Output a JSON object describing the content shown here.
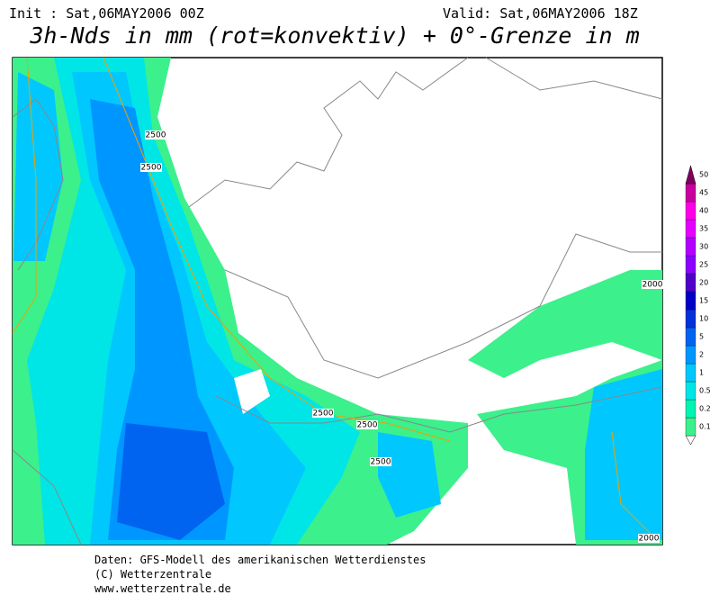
{
  "header": {
    "init": "Init : Sat,06MAY2006 00Z",
    "valid": "Valid: Sat,06MAY2006 18Z",
    "title": "3h-Nds in mm (rot=konvektiv) + 0°-Grenze in m"
  },
  "legend": [
    {
      "label": 0.1,
      "color": "#3cf08c"
    },
    {
      "label": 0.2,
      "color": "#00f5b4"
    },
    {
      "label": 0.5,
      "color": "#00e6e6"
    },
    {
      "label": 1,
      "color": "#00c8ff"
    },
    {
      "label": 2,
      "color": "#0096ff"
    },
    {
      "label": 5,
      "color": "#0064f0"
    },
    {
      "label": 10,
      "color": "#0032dc"
    },
    {
      "label": 15,
      "color": "#0000c8"
    },
    {
      "label": 20,
      "color": "#5000c8"
    },
    {
      "label": 25,
      "color": "#8c00ff"
    },
    {
      "label": 30,
      "color": "#b400ff"
    },
    {
      "label": 35,
      "color": "#e600ff"
    },
    {
      "label": 40,
      "color": "#ff00e6"
    },
    {
      "label": 45,
      "color": "#c800a0"
    },
    {
      "label": 50,
      "color": "#800060"
    }
  ],
  "contour_labels": [
    "2500",
    "2500",
    "2500",
    "2500",
    "2500",
    "2000",
    "2000"
  ],
  "footer": [
    "Daten: GFS-Modell des amerikanischen Wetterdienstes",
    "(C) Wetterzentrale",
    "www.wetterzentrale.de"
  ]
}
